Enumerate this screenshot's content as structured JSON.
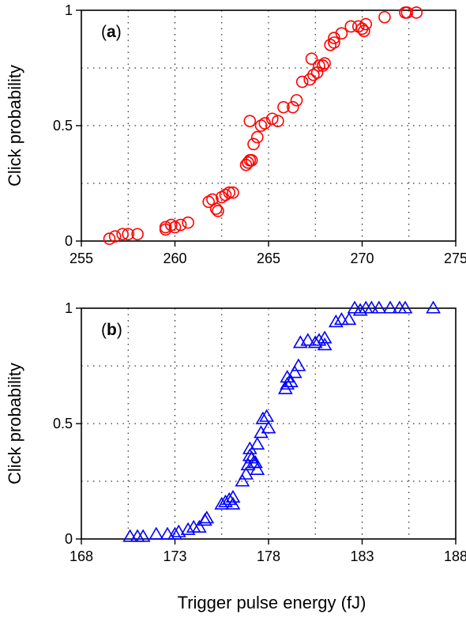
{
  "figure": {
    "xlabel": "Trigger pulse energy (fJ)"
  },
  "chart_data": [
    {
      "type": "scatter",
      "panel_label": "a",
      "marker": "circle",
      "color": "#ff0000",
      "xlabel": "",
      "ylabel": "Click probability",
      "xlim": [
        255,
        275
      ],
      "ylim": [
        0,
        1
      ],
      "xticks": [
        255,
        260,
        265,
        270,
        275
      ],
      "xtick_labels": [
        "255",
        "260",
        "265",
        "270",
        "275"
      ],
      "yticks": [
        0,
        0.5,
        1
      ],
      "ytick_labels": [
        "0",
        "0.5",
        "1"
      ],
      "grid": true,
      "series": [
        {
          "points": [
            [
              256.5,
              0.01
            ],
            [
              256.8,
              0.02
            ],
            [
              257.2,
              0.03
            ],
            [
              257.5,
              0.03
            ],
            [
              258.0,
              0.03
            ],
            [
              259.5,
              0.05
            ],
            [
              259.5,
              0.06
            ],
            [
              259.8,
              0.07
            ],
            [
              260.0,
              0.06
            ],
            [
              260.3,
              0.07
            ],
            [
              260.7,
              0.08
            ],
            [
              261.8,
              0.17
            ],
            [
              262.0,
              0.18
            ],
            [
              262.2,
              0.14
            ],
            [
              262.3,
              0.13
            ],
            [
              262.5,
              0.19
            ],
            [
              262.7,
              0.2
            ],
            [
              262.9,
              0.21
            ],
            [
              263.1,
              0.21
            ],
            [
              263.8,
              0.33
            ],
            [
              263.9,
              0.34
            ],
            [
              264.0,
              0.35
            ],
            [
              264.1,
              0.35
            ],
            [
              264.2,
              0.42
            ],
            [
              264.4,
              0.45
            ],
            [
              264.6,
              0.5
            ],
            [
              264.8,
              0.51
            ],
            [
              265.2,
              0.53
            ],
            [
              265.5,
              0.52
            ],
            [
              265.8,
              0.58
            ],
            [
              264.0,
              0.52
            ],
            [
              266.3,
              0.58
            ],
            [
              266.5,
              0.61
            ],
            [
              266.8,
              0.69
            ],
            [
              267.2,
              0.7
            ],
            [
              267.4,
              0.72
            ],
            [
              267.3,
              0.79
            ],
            [
              267.6,
              0.73
            ],
            [
              267.7,
              0.76
            ],
            [
              267.9,
              0.76
            ],
            [
              268.0,
              0.77
            ],
            [
              268.3,
              0.85
            ],
            [
              268.5,
              0.86
            ],
            [
              268.5,
              0.88
            ],
            [
              268.9,
              0.9
            ],
            [
              269.4,
              0.93
            ],
            [
              269.8,
              0.93
            ],
            [
              270.0,
              0.92
            ],
            [
              270.2,
              0.94
            ],
            [
              270.1,
              0.91
            ],
            [
              271.2,
              0.97
            ],
            [
              272.3,
              0.99
            ],
            [
              272.4,
              0.99
            ],
            [
              272.9,
              0.99
            ]
          ]
        }
      ]
    },
    {
      "type": "scatter",
      "panel_label": "b",
      "marker": "triangle",
      "color": "#0000ff",
      "xlabel": "Trigger pulse energy (fJ)",
      "ylabel": "Click probability",
      "xlim": [
        168,
        188
      ],
      "ylim": [
        0,
        1
      ],
      "xticks": [
        168,
        173,
        178,
        183,
        188
      ],
      "xtick_labels": [
        "168",
        "173",
        "178",
        "183",
        "188"
      ],
      "yticks": [
        0,
        0.5,
        1
      ],
      "ytick_labels": [
        "0",
        "0.5",
        "1"
      ],
      "grid": true,
      "series": [
        {
          "points": [
            [
              170.6,
              0.01
            ],
            [
              171.0,
              0.01
            ],
            [
              171.3,
              0.01
            ],
            [
              172.0,
              0.02
            ],
            [
              172.6,
              0.02
            ],
            [
              173.0,
              0.02
            ],
            [
              173.2,
              0.03
            ],
            [
              173.7,
              0.04
            ],
            [
              174.0,
              0.05
            ],
            [
              174.3,
              0.05
            ],
            [
              174.6,
              0.08
            ],
            [
              174.7,
              0.09
            ],
            [
              175.5,
              0.15
            ],
            [
              175.7,
              0.16
            ],
            [
              175.9,
              0.17
            ],
            [
              176.1,
              0.18
            ],
            [
              176.1,
              0.15
            ],
            [
              176.6,
              0.25
            ],
            [
              176.8,
              0.28
            ],
            [
              176.9,
              0.32
            ],
            [
              177.0,
              0.36
            ],
            [
              177.0,
              0.39
            ],
            [
              177.1,
              0.35
            ],
            [
              177.2,
              0.33
            ],
            [
              177.3,
              0.33
            ],
            [
              177.4,
              0.41
            ],
            [
              177.4,
              0.3
            ],
            [
              177.6,
              0.46
            ],
            [
              177.7,
              0.52
            ],
            [
              177.9,
              0.53
            ],
            [
              178.0,
              0.48
            ],
            [
              178.9,
              0.65
            ],
            [
              179.0,
              0.67
            ],
            [
              179.0,
              0.7
            ],
            [
              179.2,
              0.68
            ],
            [
              179.4,
              0.72
            ],
            [
              179.6,
              0.75
            ],
            [
              179.7,
              0.85
            ],
            [
              180.1,
              0.86
            ],
            [
              180.5,
              0.85
            ],
            [
              180.7,
              0.86
            ],
            [
              181.0,
              0.87
            ],
            [
              181.0,
              0.84
            ],
            [
              181.6,
              0.94
            ],
            [
              181.9,
              0.95
            ],
            [
              182.3,
              0.95
            ],
            [
              182.6,
              1.0
            ],
            [
              182.9,
              0.99
            ],
            [
              183.2,
              1.0
            ],
            [
              183.5,
              1.0
            ],
            [
              183.9,
              1.0
            ],
            [
              184.5,
              1.0
            ],
            [
              185.0,
              1.0
            ],
            [
              185.3,
              1.0
            ],
            [
              186.8,
              1.0
            ]
          ]
        }
      ]
    }
  ]
}
